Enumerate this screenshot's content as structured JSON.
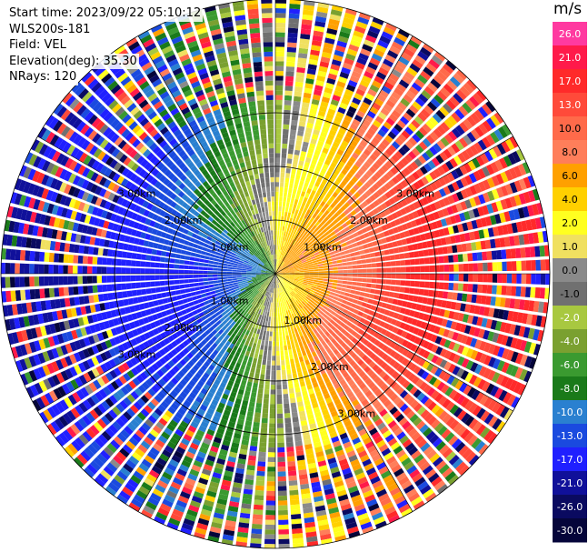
{
  "header": {
    "start_time": "Start time: 2023/09/22 05:10:12",
    "instrument": "WLS200s-181",
    "field": "Field: VEL",
    "elevation": "Elevation(deg): 35.30",
    "nrays": "NRays: 120"
  },
  "colorbar": {
    "unit": "m/s",
    "levels": [
      "26.0",
      "21.0",
      "17.0",
      "13.0",
      "10.0",
      "8.0",
      "6.0",
      "4.0",
      "2.0",
      "1.0",
      "0.0",
      "-1.0",
      "-2.0",
      "-4.0",
      "-6.0",
      "-8.0",
      "-10.0",
      "-13.0",
      "-17.0",
      "-21.0",
      "-26.0",
      "-30.0"
    ],
    "colors": [
      "#ff3aa0",
      "#ff1a4a",
      "#ff2a2a",
      "#ff4a3a",
      "#ff6a4a",
      "#ff7e5a",
      "#ffa000",
      "#ffd000",
      "#ffff20",
      "#f0e060",
      "#8a8a8a",
      "#707070",
      "#a8c840",
      "#7aa030",
      "#3a9a30",
      "#1a7a1a",
      "#2a80d0",
      "#1a4adf",
      "#2020ff",
      "#10109a",
      "#0a0a60",
      "#05053a"
    ]
  },
  "chart_data": {
    "type": "heatmap",
    "projection": "polar PPI",
    "field": "VEL",
    "nrays": 120,
    "range_rings_km": [
      1.0,
      2.0,
      3.0
    ],
    "ring_labels": [
      "1.00km",
      "2.00km",
      "3.00km"
    ],
    "value_range": [
      -30.0,
      26.0
    ],
    "description_pattern": "dipole: positive (toward red/orange) on east half, negative (green/blue) on west half, noisy outer ranges",
    "grid": true
  }
}
